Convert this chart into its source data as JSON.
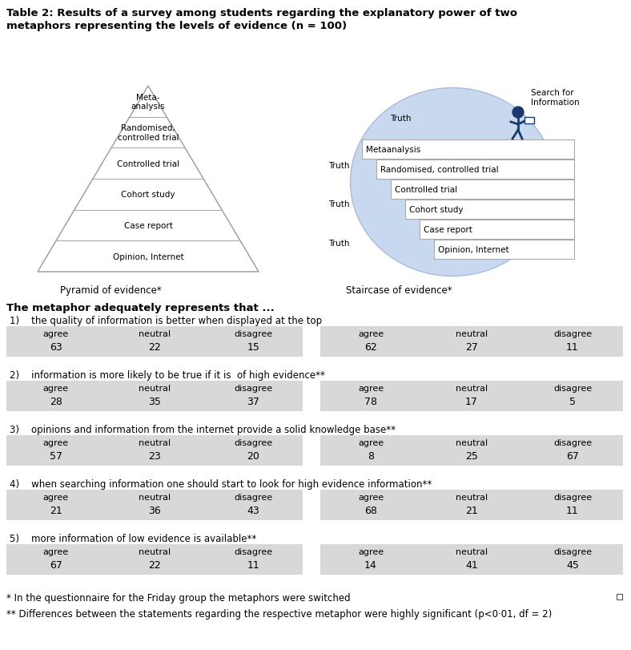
{
  "title_line1": "Table 2: Results of a survey among students regarding the explanatory power of two",
  "title_line2": "metaphors representing the levels of evidence (n = 100)",
  "pyramid_label": "Pyramid of evidence*",
  "staircase_label": "Staircase of evidence*",
  "pyramid_layers": [
    "Meta-\nanalysis",
    "Randomised,\ncontrolled trial",
    "Controlled trial",
    "Cohort study",
    "Case report",
    "Opinion, Internet"
  ],
  "staircase_layers": [
    "Metaanalysis",
    "Randomised, controlled trial",
    "Controlled trial",
    "Cohort study",
    "Case report",
    "Opinion, Internet"
  ],
  "section_header": "The metaphor adequately represents that ...",
  "questions": [
    "1)    the quality of information is better when displayed at the top",
    "2)    information is more likely to be true if it is  of high evidence**",
    "3)    opinions and information from the internet provide a solid knowledge base**",
    "4)    when searching information one should start to look for high evidence information**",
    "5)    more information of low evidence is available**"
  ],
  "pyramid_data": [
    [
      63,
      22,
      15
    ],
    [
      28,
      35,
      37
    ],
    [
      57,
      23,
      20
    ],
    [
      21,
      36,
      43
    ],
    [
      67,
      22,
      11
    ]
  ],
  "staircase_data": [
    [
      62,
      27,
      11
    ],
    [
      78,
      17,
      5
    ],
    [
      8,
      25,
      67
    ],
    [
      68,
      21,
      11
    ],
    [
      14,
      41,
      45
    ]
  ],
  "col_headers": [
    "agree",
    "neutral",
    "disagree"
  ],
  "footnote1": "* In the questionnaire for the Friday group the metaphors were switched",
  "footnote2": "** Differences between the statements regarding the respective metaphor were highly significant (p<0·01, df = 2)",
  "table_bg": "#d8d8d8",
  "ellipse_color": "#c8d8ee",
  "person_color": "#1a3a6e"
}
